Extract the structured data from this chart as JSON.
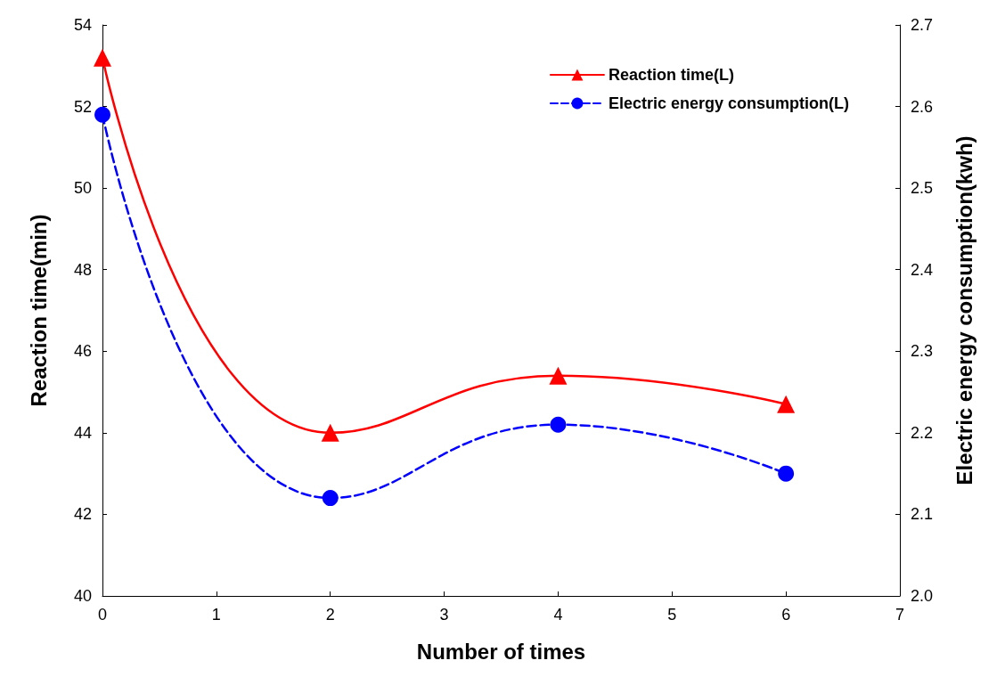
{
  "chart_data": {
    "type": "line",
    "xlabel": "Number of times",
    "ylabel": "Reaction time(min)",
    "y2label": "Electric energy consumption(kwh)",
    "x": [
      0,
      2,
      4,
      6
    ],
    "series": [
      {
        "name": "Reaction time(L)",
        "color": "#ff0000",
        "values": [
          53.2,
          44.0,
          45.4,
          44.7
        ],
        "marker": "triangle",
        "line_style": "solid"
      },
      {
        "name": "Electric energy consumption(L)",
        "color": "#0000ff",
        "values": [
          2.59,
          2.12,
          2.21,
          2.15
        ],
        "marker": "circle",
        "line_style": "dashed",
        "axis": "y2"
      }
    ],
    "xlim": [
      0,
      7
    ],
    "xticks": [
      0,
      1,
      2,
      3,
      4,
      5,
      6,
      7
    ],
    "ylim": [
      40,
      54
    ],
    "yticks": [
      40,
      42,
      44,
      46,
      48,
      50,
      52,
      54
    ],
    "y2lim": [
      2.0,
      2.7
    ],
    "y2ticks": [
      {
        "value": 2.0,
        "label": "2.0"
      },
      {
        "value": 2.1,
        "label": "2.1"
      },
      {
        "value": 2.2,
        "label": "2.2"
      },
      {
        "value": 2.3,
        "label": "2.3"
      },
      {
        "value": 2.4,
        "label": "2.4"
      },
      {
        "value": 2.5,
        "label": "2.5"
      },
      {
        "value": 2.6,
        "label": "2.6"
      },
      {
        "value": 2.7,
        "label": "2.7"
      }
    ],
    "grid": false,
    "legend": "top right"
  }
}
